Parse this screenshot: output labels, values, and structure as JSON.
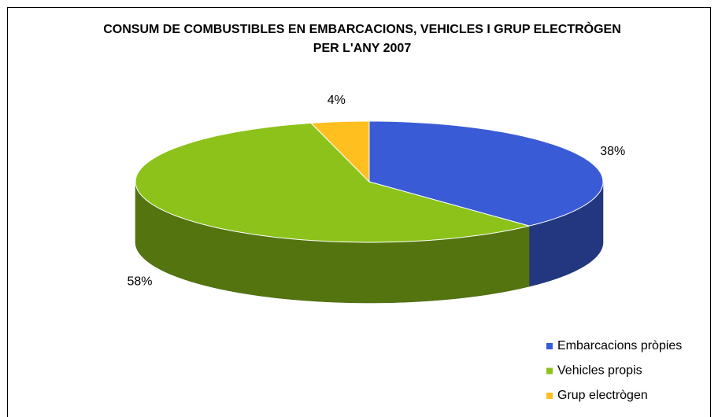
{
  "chart_data": {
    "type": "pie3d",
    "title": "CONSUM DE COMBUSTIBLES EN EMBARCACIONS, VEHICLES I GRUP ELECTRÒGEN PER L'ANY 2007",
    "categories": [
      "Embarcacions pròpies",
      "Vehicles propis",
      "Grup electrògen"
    ],
    "values": [
      38,
      58,
      4
    ],
    "value_labels": [
      "38%",
      "58%",
      "4%"
    ],
    "colors": [
      "#3a5bd6",
      "#8cc21a",
      "#ffbf1f"
    ],
    "legend": "bottom-right"
  }
}
